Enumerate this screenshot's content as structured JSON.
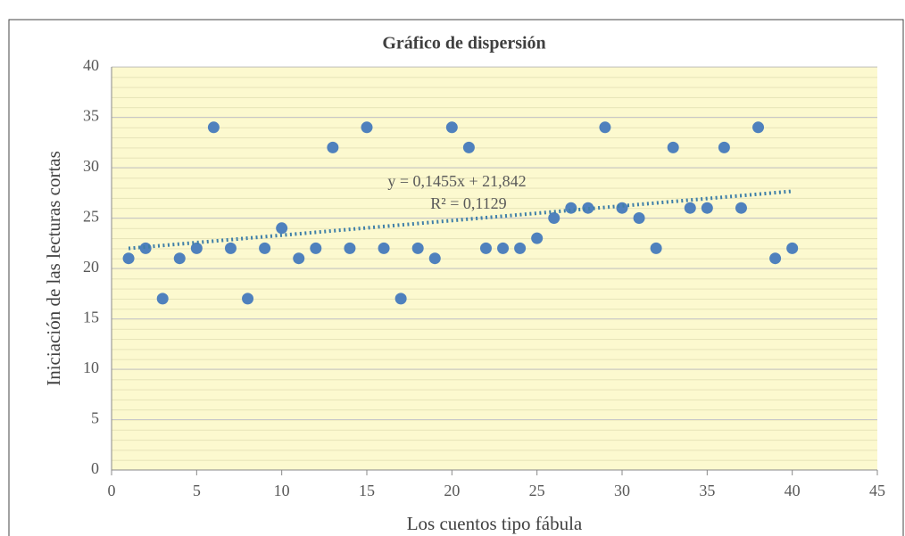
{
  "chart_data": {
    "type": "scatter",
    "title": "Gráfico  de  dispersión",
    "xlabel": "Los cuentos tipo fábula",
    "ylabel": "Iniciación de las lecturas cortas",
    "x": [
      1,
      2,
      3,
      4,
      5,
      6,
      7,
      8,
      9,
      10,
      11,
      12,
      13,
      14,
      15,
      16,
      17,
      18,
      19,
      20,
      21,
      22,
      23,
      24,
      25,
      26,
      27,
      28,
      29,
      30,
      31,
      32,
      33,
      34,
      35,
      36,
      37,
      38,
      39,
      40
    ],
    "values": [
      21,
      22,
      17,
      21,
      22,
      34,
      22,
      17,
      22,
      24,
      21,
      22,
      32,
      22,
      34,
      22,
      17,
      22,
      21,
      34,
      32,
      22,
      22,
      22,
      23,
      25,
      26,
      26,
      34,
      26,
      25,
      22,
      32,
      26,
      26,
      32,
      26,
      34,
      21,
      22
    ],
    "color": "#4f81bd",
    "xlim": [
      0,
      45
    ],
    "xticks": [
      0,
      5,
      10,
      15,
      20,
      25,
      30,
      35,
      40,
      45
    ],
    "ylim": [
      0,
      40
    ],
    "yticks": [
      0,
      5,
      10,
      15,
      20,
      25,
      30,
      35,
      40
    ],
    "grid": true,
    "trendline": {
      "slope": 0.1455,
      "intercept": 21.842,
      "label": "y = 0,1455x  + 21,842",
      "r2": 0.1129,
      "r2_label": "R² = 0,1129",
      "color": "#3f7fa8"
    }
  }
}
